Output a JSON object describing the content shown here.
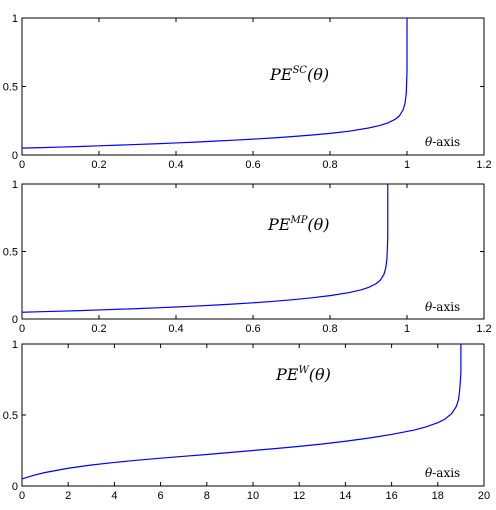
{
  "chart_data": [
    {
      "type": "line",
      "annotation": {
        "base": "PE",
        "sup": "SC",
        "arg": "(θ)"
      },
      "xlabel_symbol": "θ",
      "xlabel_suffix": "-axis",
      "xlim": [
        0,
        1.2
      ],
      "ylim": [
        0,
        1
      ],
      "xticks": [
        "0",
        "0.2",
        "0.4",
        "0.6",
        "0.8",
        "1",
        "1.2"
      ],
      "yticks": [
        "0",
        "0.5",
        "1"
      ],
      "series": [
        {
          "color": "#0000ff",
          "x": [
            0,
            0.05,
            0.1,
            0.15,
            0.2,
            0.25,
            0.3,
            0.35,
            0.4,
            0.45,
            0.5,
            0.55,
            0.6,
            0.65,
            0.7,
            0.75,
            0.8,
            0.85,
            0.9,
            0.93,
            0.95,
            0.97,
            0.98,
            0.99,
            0.995,
            0.998,
            1.0,
            1.0
          ],
          "y": [
            0.05,
            0.054,
            0.058,
            0.062,
            0.067,
            0.072,
            0.077,
            0.082,
            0.088,
            0.094,
            0.101,
            0.108,
            0.116,
            0.124,
            0.134,
            0.145,
            0.158,
            0.174,
            0.197,
            0.216,
            0.234,
            0.262,
            0.285,
            0.33,
            0.38,
            0.45,
            0.6,
            1.0
          ]
        }
      ]
    },
    {
      "type": "line",
      "annotation": {
        "base": "PE",
        "sup": "MP",
        "arg": "(θ)"
      },
      "xlabel_symbol": "θ",
      "xlabel_suffix": "-axis",
      "xlim": [
        0,
        1.2
      ],
      "ylim": [
        0,
        1
      ],
      "xticks": [
        "0",
        "0.2",
        "0.4",
        "0.6",
        "0.8",
        "1",
        "1.2"
      ],
      "yticks": [
        "0",
        "0.5",
        "1"
      ],
      "series": [
        {
          "color": "#0000ff",
          "x": [
            0,
            0.05,
            0.1,
            0.15,
            0.2,
            0.25,
            0.3,
            0.35,
            0.4,
            0.45,
            0.5,
            0.55,
            0.6,
            0.65,
            0.7,
            0.75,
            0.8,
            0.85,
            0.88,
            0.9,
            0.92,
            0.93,
            0.94,
            0.945,
            0.948,
            0.95,
            0.95
          ],
          "y": [
            0.05,
            0.054,
            0.058,
            0.062,
            0.067,
            0.072,
            0.077,
            0.083,
            0.089,
            0.096,
            0.103,
            0.111,
            0.12,
            0.13,
            0.142,
            0.156,
            0.173,
            0.196,
            0.215,
            0.234,
            0.262,
            0.285,
            0.33,
            0.38,
            0.45,
            0.6,
            1.0
          ]
        }
      ]
    },
    {
      "type": "line",
      "annotation": {
        "base": "PE",
        "sup": "W",
        "arg": "(θ)"
      },
      "xlabel_symbol": "θ",
      "xlabel_suffix": "-axis",
      "xlim": [
        0,
        20
      ],
      "ylim": [
        0,
        1
      ],
      "xticks": [
        "0",
        "2",
        "4",
        "6",
        "8",
        "10",
        "12",
        "14",
        "16",
        "18",
        "20"
      ],
      "yticks": [
        "0",
        "0.5",
        "1"
      ],
      "series": [
        {
          "color": "#0000ff",
          "x": [
            0,
            0.5,
            1,
            2,
            3,
            4,
            5,
            6,
            7,
            8,
            9,
            10,
            11,
            12,
            13,
            14,
            15,
            16,
            17,
            17.5,
            18,
            18.3,
            18.6,
            18.8,
            18.9,
            18.95,
            19.0,
            19.0
          ],
          "y": [
            0.05,
            0.075,
            0.095,
            0.125,
            0.148,
            0.166,
            0.182,
            0.196,
            0.209,
            0.222,
            0.236,
            0.25,
            0.264,
            0.279,
            0.296,
            0.315,
            0.337,
            0.363,
            0.395,
            0.417,
            0.446,
            0.47,
            0.51,
            0.56,
            0.61,
            0.68,
            0.8,
            1.0
          ]
        }
      ]
    }
  ]
}
